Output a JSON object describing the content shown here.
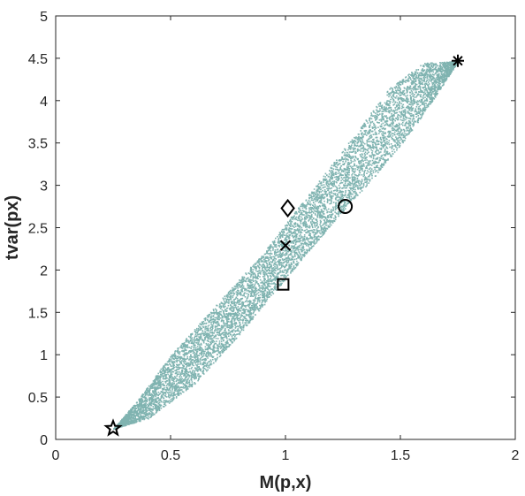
{
  "chart_data": {
    "type": "scatter",
    "title": "",
    "xlabel": "M(p,x)",
    "ylabel": "tvar(px)",
    "xlim": [
      0,
      2
    ],
    "ylim": [
      0,
      5
    ],
    "xticks": [
      0,
      0.5,
      1,
      1.5,
      2
    ],
    "xtick_labels": [
      "0",
      "0.5",
      "1",
      "1.5",
      "2"
    ],
    "yticks": [
      0,
      0.5,
      1,
      1.5,
      2,
      2.5,
      3,
      3.5,
      4,
      4.5,
      5
    ],
    "ytick_labels": [
      "0",
      "0.5",
      "1",
      "1.5",
      "2",
      "2.5",
      "3",
      "3.5",
      "4",
      "4.5",
      "5"
    ],
    "grid": false,
    "box": true,
    "cloud": {
      "color": "#7fb3b0",
      "approx_points": 9000,
      "lower_edge": [
        [
          0.25,
          0.13
        ],
        [
          0.4,
          0.25
        ],
        [
          0.6,
          0.65
        ],
        [
          0.8,
          1.25
        ],
        [
          1.0,
          1.9
        ],
        [
          1.2,
          2.55
        ],
        [
          1.4,
          3.15
        ],
        [
          1.55,
          3.65
        ],
        [
          1.65,
          4.05
        ],
        [
          1.75,
          4.47
        ]
      ],
      "upper_edge": [
        [
          0.25,
          0.13
        ],
        [
          0.35,
          0.45
        ],
        [
          0.5,
          1.0
        ],
        [
          0.7,
          1.6
        ],
        [
          0.9,
          2.2
        ],
        [
          1.1,
          2.9
        ],
        [
          1.3,
          3.6
        ],
        [
          1.45,
          4.15
        ],
        [
          1.6,
          4.45
        ],
        [
          1.75,
          4.47
        ]
      ]
    },
    "markers": [
      {
        "shape": "star",
        "x": 0.25,
        "y": 0.13
      },
      {
        "shape": "asterisk",
        "x": 1.75,
        "y": 4.47
      },
      {
        "shape": "diamond",
        "x": 1.01,
        "y": 2.73
      },
      {
        "shape": "circle",
        "x": 1.26,
        "y": 2.75
      },
      {
        "shape": "x",
        "x": 1.0,
        "y": 2.29
      },
      {
        "shape": "square",
        "x": 0.99,
        "y": 1.83
      }
    ]
  }
}
